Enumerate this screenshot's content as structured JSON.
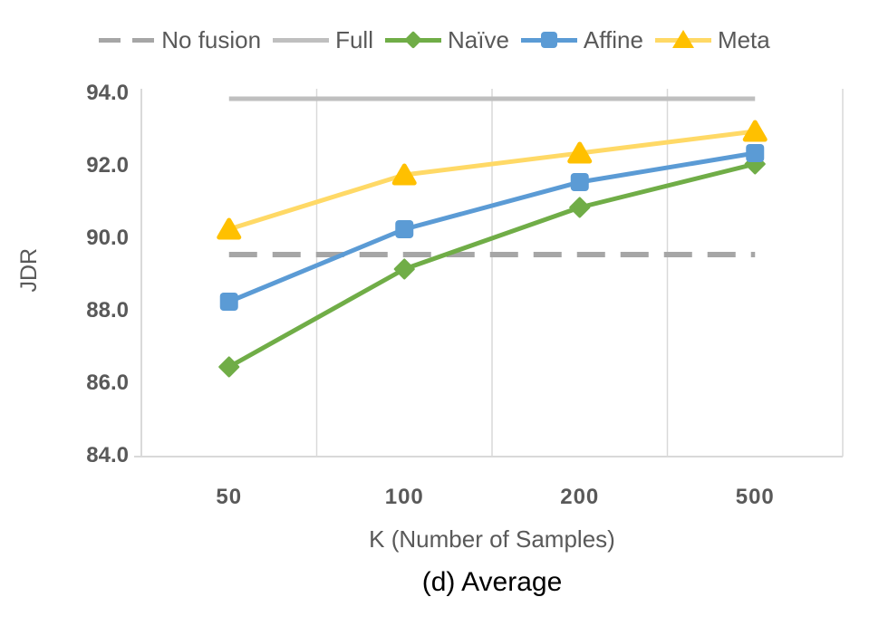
{
  "caption": "(d) Average",
  "legend": {
    "items": [
      {
        "label": "No fusion",
        "type": "dashed-line",
        "color": "#A6A6A6"
      },
      {
        "label": "Full",
        "type": "solid-line",
        "color": "#BFBFBF"
      },
      {
        "label": "Naïve",
        "type": "line-diamond",
        "color": "#70AD47",
        "marker_color": "#70AD47"
      },
      {
        "label": "Affine",
        "type": "line-square",
        "color": "#5B9BD5",
        "marker_color": "#5B9BD5"
      },
      {
        "label": "Meta",
        "type": "line-triangle",
        "color": "#FFD966",
        "marker_color": "#FFC000"
      }
    ]
  },
  "chart_data": {
    "type": "line",
    "title": "",
    "xlabel": "K (Number of Samples)",
    "ylabel": "JDR",
    "categories": [
      "50",
      "100",
      "200",
      "500"
    ],
    "ylim": [
      84,
      94
    ],
    "ytick_step": 2,
    "ytick_labels": [
      "84.0",
      "86.0",
      "88.0",
      "90.0",
      "92.0",
      "94.0"
    ],
    "grid": "vertical-only",
    "legend_position": "top",
    "reference_lines": [
      {
        "name": "No fusion",
        "value": 89.5,
        "style": "dashed",
        "color": "#A6A6A6"
      },
      {
        "name": "Full",
        "value": 93.8,
        "style": "solid",
        "color": "#BFBFBF"
      }
    ],
    "series": [
      {
        "name": "Naïve",
        "marker": "diamond",
        "color": "#70AD47",
        "marker_color": "#70AD47",
        "values": [
          86.4,
          89.1,
          90.8,
          92.0
        ]
      },
      {
        "name": "Affine",
        "marker": "square",
        "color": "#5B9BD5",
        "marker_color": "#5B9BD5",
        "values": [
          88.2,
          90.2,
          91.5,
          92.3
        ]
      },
      {
        "name": "Meta",
        "marker": "triangle",
        "color": "#FFD966",
        "marker_color": "#FFC000",
        "values": [
          90.2,
          91.7,
          92.3,
          92.9
        ]
      }
    ]
  },
  "colors": {
    "axis_line": "#D9D9D9",
    "gridline": "#D9D9D9",
    "tick_text": "#595959",
    "axis_title_text": "#595959",
    "caption_text": "#000000"
  }
}
